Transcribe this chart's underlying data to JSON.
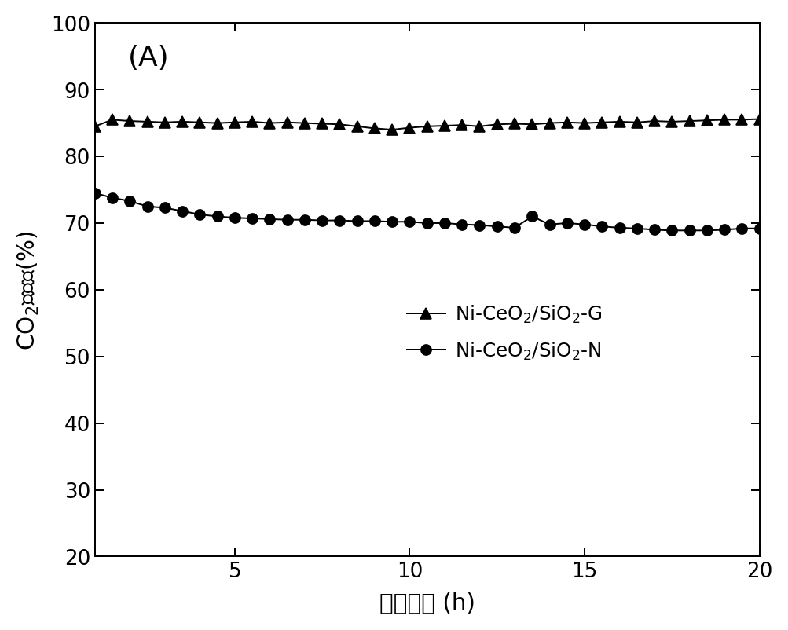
{
  "xlabel": "反应时间 (h)",
  "ylabel": "CO$_2$转化率(%)",
  "xlim": [
    1,
    20
  ],
  "ylim": [
    20,
    100
  ],
  "yticks": [
    20,
    30,
    40,
    50,
    60,
    70,
    80,
    90,
    100
  ],
  "xticks": [
    5,
    10,
    15,
    20
  ],
  "series_G": {
    "x": [
      1.0,
      1.5,
      2.0,
      2.5,
      3.0,
      3.5,
      4.0,
      4.5,
      5.0,
      5.5,
      6.0,
      6.5,
      7.0,
      7.5,
      8.0,
      8.5,
      9.0,
      9.5,
      10.0,
      10.5,
      11.0,
      11.5,
      12.0,
      12.5,
      13.0,
      13.5,
      14.0,
      14.5,
      15.0,
      15.5,
      16.0,
      16.5,
      17.0,
      17.5,
      18.0,
      18.5,
      19.0,
      19.5,
      20.0
    ],
    "y": [
      84.5,
      85.5,
      85.3,
      85.2,
      85.1,
      85.2,
      85.1,
      85.0,
      85.1,
      85.2,
      85.0,
      85.1,
      85.0,
      84.9,
      84.8,
      84.5,
      84.2,
      84.0,
      84.3,
      84.5,
      84.6,
      84.7,
      84.5,
      84.8,
      84.9,
      84.8,
      85.0,
      85.1,
      85.0,
      85.1,
      85.2,
      85.1,
      85.3,
      85.2,
      85.3,
      85.4,
      85.5,
      85.5,
      85.6
    ],
    "marker": "^",
    "markersize": 8
  },
  "series_N": {
    "x": [
      1.0,
      1.5,
      2.0,
      2.5,
      3.0,
      3.5,
      4.0,
      4.5,
      5.0,
      5.5,
      6.0,
      6.5,
      7.0,
      7.5,
      8.0,
      8.5,
      9.0,
      9.5,
      10.0,
      10.5,
      11.0,
      11.5,
      12.0,
      12.5,
      13.0,
      13.5,
      14.0,
      14.5,
      15.0,
      15.5,
      16.0,
      16.5,
      17.0,
      17.5,
      18.0,
      18.5,
      19.0,
      19.5,
      20.0
    ],
    "y": [
      74.5,
      73.8,
      73.3,
      72.5,
      72.3,
      71.8,
      71.3,
      71.0,
      70.8,
      70.7,
      70.6,
      70.5,
      70.5,
      70.4,
      70.4,
      70.3,
      70.3,
      70.2,
      70.2,
      70.0,
      70.0,
      69.8,
      69.7,
      69.5,
      69.3,
      71.0,
      69.8,
      70.0,
      69.8,
      69.5,
      69.3,
      69.2,
      69.0,
      68.9,
      68.9,
      68.9,
      69.0,
      69.2,
      69.2
    ],
    "marker": "o",
    "markersize": 8
  },
  "linewidth": 1.2,
  "color": "#000000",
  "background_color": "#ffffff",
  "panel_label": "(A)",
  "label_G": "Ni-CeO$_2$/SiO$_2$-G",
  "label_N": "Ni-CeO$_2$/SiO$_2$-N",
  "tick_fontsize": 16,
  "label_fontsize": 18,
  "panel_fontsize": 22,
  "legend_fontsize": 15
}
